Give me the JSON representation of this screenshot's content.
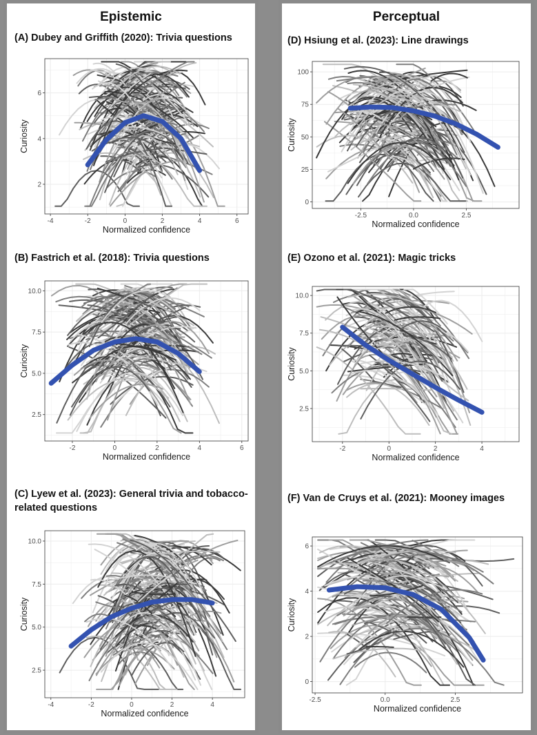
{
  "columns": {
    "left": "Epistemic",
    "right": "Perceptual"
  },
  "panels": [
    {
      "id": "A",
      "title": "(A) Dubey and Griffith (2020): Trivia questions"
    },
    {
      "id": "B",
      "title": "(B) Fastrich et al. (2018): Trivia questions"
    },
    {
      "id": "C",
      "title": "(C) Lyew et al. (2023): General trivia and tobacco-related questions"
    },
    {
      "id": "D",
      "title": "(D) Hsiung et al. (2023): Line drawings"
    },
    {
      "id": "E",
      "title": "(E) Ozono et al. (2021): Magic tricks"
    },
    {
      "id": "F",
      "title": "(F) Van de Cruys et al. (2021): Mooney images"
    }
  ],
  "colors": {
    "fit_line": "#3352b0",
    "individual_lines": [
      "#3a3a3a",
      "#5e5e5e",
      "#7d7d7d",
      "#9e9e9e",
      "#bdbdbd",
      "#d3d3d3"
    ],
    "panel_bg": "#ffffff",
    "grid": "#ebebeb"
  },
  "chart_data": [
    {
      "panel": "A",
      "type": "line",
      "xlabel": "Normalized confidence",
      "ylabel": "Curiosity",
      "xlim": [
        -4.3,
        6.6
      ],
      "ylim": [
        0.7,
        7.5
      ],
      "xticks": [
        -4,
        -2,
        0,
        2,
        4,
        6
      ],
      "yticks": [
        2,
        4,
        6
      ],
      "fit": {
        "x_range": [
          -2,
          4
        ],
        "points": [
          [
            -2,
            2.85
          ],
          [
            -1,
            3.95
          ],
          [
            0,
            4.7
          ],
          [
            1,
            5.0
          ],
          [
            2,
            4.75
          ],
          [
            3,
            4.0
          ],
          [
            4,
            2.6
          ]
        ]
      },
      "individual": {
        "count": 220,
        "x_center": 0.9,
        "x_spread": 1.8,
        "y_range": [
          1.0,
          7.2
        ]
      }
    },
    {
      "panel": "B",
      "type": "line",
      "xlabel": "Normalized confidence",
      "ylabel": "Curiosity",
      "xlim": [
        -3.3,
        6.3
      ],
      "ylim": [
        0.9,
        10.6
      ],
      "xticks": [
        -2,
        0,
        2,
        4,
        6
      ],
      "yticks": [
        2.5,
        5.0,
        7.5,
        10.0
      ],
      "fit": {
        "x_range": [
          -3,
          4
        ],
        "points": [
          [
            -3,
            4.4
          ],
          [
            -2,
            5.5
          ],
          [
            -1,
            6.4
          ],
          [
            0,
            6.9
          ],
          [
            1,
            7.1
          ],
          [
            2,
            6.9
          ],
          [
            3,
            6.2
          ],
          [
            4,
            5.1
          ]
        ]
      },
      "individual": {
        "count": 170,
        "x_center": 1.0,
        "x_spread": 1.5,
        "y_range": [
          1.8,
          10.1
        ]
      }
    },
    {
      "panel": "C",
      "type": "line",
      "xlabel": "Normalized confidence",
      "ylabel": "Curiosity",
      "xlim": [
        -4.3,
        5.6
      ],
      "ylim": [
        0.9,
        10.6
      ],
      "xticks": [
        -4,
        -2,
        0,
        2,
        4
      ],
      "yticks": [
        2.5,
        5.0,
        7.5,
        10.0
      ],
      "fit": {
        "x_range": [
          -3,
          4
        ],
        "points": [
          [
            -3,
            3.9
          ],
          [
            -2,
            4.85
          ],
          [
            -1,
            5.6
          ],
          [
            0,
            6.1
          ],
          [
            1,
            6.45
          ],
          [
            2,
            6.6
          ],
          [
            3,
            6.6
          ],
          [
            4,
            6.4
          ]
        ]
      },
      "individual": {
        "count": 200,
        "x_center": 1.2,
        "x_spread": 1.8,
        "y_range": [
          1.1,
          10.0
        ]
      }
    },
    {
      "panel": "D",
      "type": "line",
      "xlabel": "Normalized confidence",
      "ylabel": "Curiosity",
      "xlim": [
        -4.8,
        5.0
      ],
      "ylim": [
        -5,
        108
      ],
      "xticks": [
        -2.5,
        0.0,
        2.5
      ],
      "yticks": [
        0,
        25,
        50,
        75,
        100
      ],
      "fit": {
        "x_range": [
          -3,
          4
        ],
        "points": [
          [
            -3,
            72
          ],
          [
            -2,
            73
          ],
          [
            -1,
            72.5
          ],
          [
            0,
            70
          ],
          [
            1,
            66
          ],
          [
            2,
            60
          ],
          [
            3,
            52
          ],
          [
            4,
            42
          ]
        ]
      },
      "individual": {
        "count": 170,
        "x_center": -0.5,
        "x_spread": 1.8,
        "y_range": [
          0,
          100
        ]
      }
    },
    {
      "panel": "E",
      "type": "line",
      "xlabel": "Normalized confidence",
      "ylabel": "Curiosity",
      "xlim": [
        -3.3,
        5.6
      ],
      "ylim": [
        0.3,
        10.6
      ],
      "xticks": [
        -2,
        0,
        2,
        4
      ],
      "yticks": [
        2.5,
        5.0,
        7.5,
        10.0
      ],
      "fit": {
        "x_range": [
          -2,
          4
        ],
        "points": [
          [
            -2,
            7.9
          ],
          [
            -1,
            6.7
          ],
          [
            0,
            5.7
          ],
          [
            1,
            4.8
          ],
          [
            2,
            3.9
          ],
          [
            3,
            3.05
          ],
          [
            4,
            2.25
          ]
        ]
      },
      "individual": {
        "count": 140,
        "x_center": 0.5,
        "x_spread": 1.5,
        "y_range": [
          0.8,
          10.1
        ]
      }
    },
    {
      "panel": "F",
      "type": "line",
      "xlabel": "Normalized confidence",
      "ylabel": "Curiosity",
      "xlim": [
        -2.6,
        4.9
      ],
      "ylim": [
        -0.5,
        6.4
      ],
      "xticks": [
        -2.5,
        0.0,
        2.5
      ],
      "yticks": [
        0,
        2,
        4,
        6
      ],
      "fit": {
        "x_range": [
          -2,
          3.5
        ],
        "points": [
          [
            -2,
            4.05
          ],
          [
            -1,
            4.2
          ],
          [
            0,
            4.15
          ],
          [
            1,
            3.85
          ],
          [
            2,
            3.2
          ],
          [
            3,
            1.95
          ],
          [
            3.5,
            0.95
          ]
        ]
      },
      "individual": {
        "count": 170,
        "x_center": 0.6,
        "x_spread": 1.5,
        "y_range": [
          -0.3,
          6.0
        ]
      }
    }
  ]
}
